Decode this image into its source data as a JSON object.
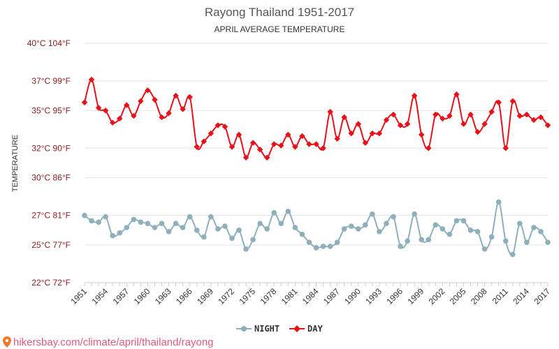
{
  "chart_data": {
    "type": "line",
    "title": "Rayong Thailand 1951-2017",
    "subtitle": "APRIL AVERAGE TEMPERATURE",
    "ylabel": "TEMPERATURE",
    "y_ticks": [
      {
        "value": 22.2,
        "label": "22°C 72°F"
      },
      {
        "value": 25,
        "label": "25°C 77°F"
      },
      {
        "value": 27.2,
        "label": "27°C 81°F"
      },
      {
        "value": 30,
        "label": "30°C 86°F"
      },
      {
        "value": 32.2,
        "label": "32°C 90°F"
      },
      {
        "value": 35,
        "label": "35°C 95°F"
      },
      {
        "value": 37.2,
        "label": "37°C 99°F"
      },
      {
        "value": 40,
        "label": "40°C 104°F"
      }
    ],
    "ylim": [
      22.2,
      40
    ],
    "x_tick_labels": [
      "1951",
      "1954",
      "1957",
      "1960",
      "1963",
      "1966",
      "1969",
      "1972",
      "1975",
      "1978",
      "1981",
      "1984",
      "1987",
      "1990",
      "1993",
      "1996",
      "1999",
      "2002",
      "2005",
      "2008",
      "2011",
      "2014",
      "2017"
    ],
    "x": [
      1951,
      1952,
      1953,
      1954,
      1955,
      1956,
      1957,
      1958,
      1959,
      1960,
      1961,
      1962,
      1963,
      1964,
      1965,
      1966,
      1967,
      1968,
      1969,
      1970,
      1971,
      1972,
      1973,
      1974,
      1975,
      1976,
      1977,
      1978,
      1979,
      1980,
      1981,
      1982,
      1983,
      1984,
      1985,
      1986,
      1987,
      1988,
      1989,
      1990,
      1991,
      1992,
      1993,
      1994,
      1995,
      1996,
      1997,
      1998,
      1999,
      2000,
      2001,
      2002,
      2003,
      2004,
      2005,
      2006,
      2007,
      2008,
      2009,
      2010,
      2011,
      2012,
      2013,
      2014,
      2015,
      2016,
      2017
    ],
    "grid": true,
    "legend_position": "bottom",
    "series": [
      {
        "name": "NIGHT",
        "color": "#8fb0bb",
        "values": [
          27.2,
          26.8,
          26.7,
          27.1,
          25.7,
          25.9,
          26.3,
          26.9,
          26.7,
          26.6,
          26.3,
          26.6,
          26.0,
          26.6,
          26.3,
          27.1,
          26.1,
          25.6,
          27.1,
          26.2,
          26.4,
          25.5,
          26.1,
          24.7,
          25.4,
          26.6,
          26.2,
          27.4,
          26.6,
          27.5,
          26.3,
          25.8,
          25.2,
          24.8,
          24.9,
          24.9,
          25.2,
          26.2,
          26.4,
          26.2,
          26.5,
          27.3,
          26.0,
          26.6,
          27.1,
          24.9,
          25.3,
          27.3,
          25.4,
          25.4,
          26.5,
          26.2,
          25.8,
          26.8,
          26.8,
          26.1,
          26.0,
          24.7,
          25.6,
          28.2,
          25.3,
          24.3,
          26.6,
          25.2,
          26.3,
          26.0,
          25.2
        ]
      },
      {
        "name": "DAY",
        "color": "#e8111a",
        "values": [
          35.6,
          37.3,
          35.2,
          35.0,
          34.1,
          34.4,
          35.4,
          34.6,
          35.7,
          36.5,
          35.8,
          34.5,
          34.8,
          36.1,
          35.1,
          36.0,
          32.3,
          32.7,
          33.3,
          33.9,
          33.8,
          32.3,
          33.2,
          31.5,
          32.6,
          32.1,
          31.5,
          32.5,
          32.4,
          33.2,
          32.3,
          33.1,
          32.5,
          32.5,
          32.2,
          34.9,
          32.9,
          34.5,
          33.3,
          34.0,
          32.6,
          33.3,
          33.3,
          34.3,
          34.7,
          33.9,
          34.0,
          36.1,
          33.2,
          32.2,
          34.7,
          34.4,
          34.6,
          36.2,
          34.0,
          34.7,
          33.4,
          34.0,
          34.9,
          35.6,
          32.2,
          35.7,
          34.6,
          34.7,
          34.3,
          34.5,
          33.9
        ]
      }
    ]
  },
  "watermark": "hikersbay.com/climate/april/thailand/rayong"
}
